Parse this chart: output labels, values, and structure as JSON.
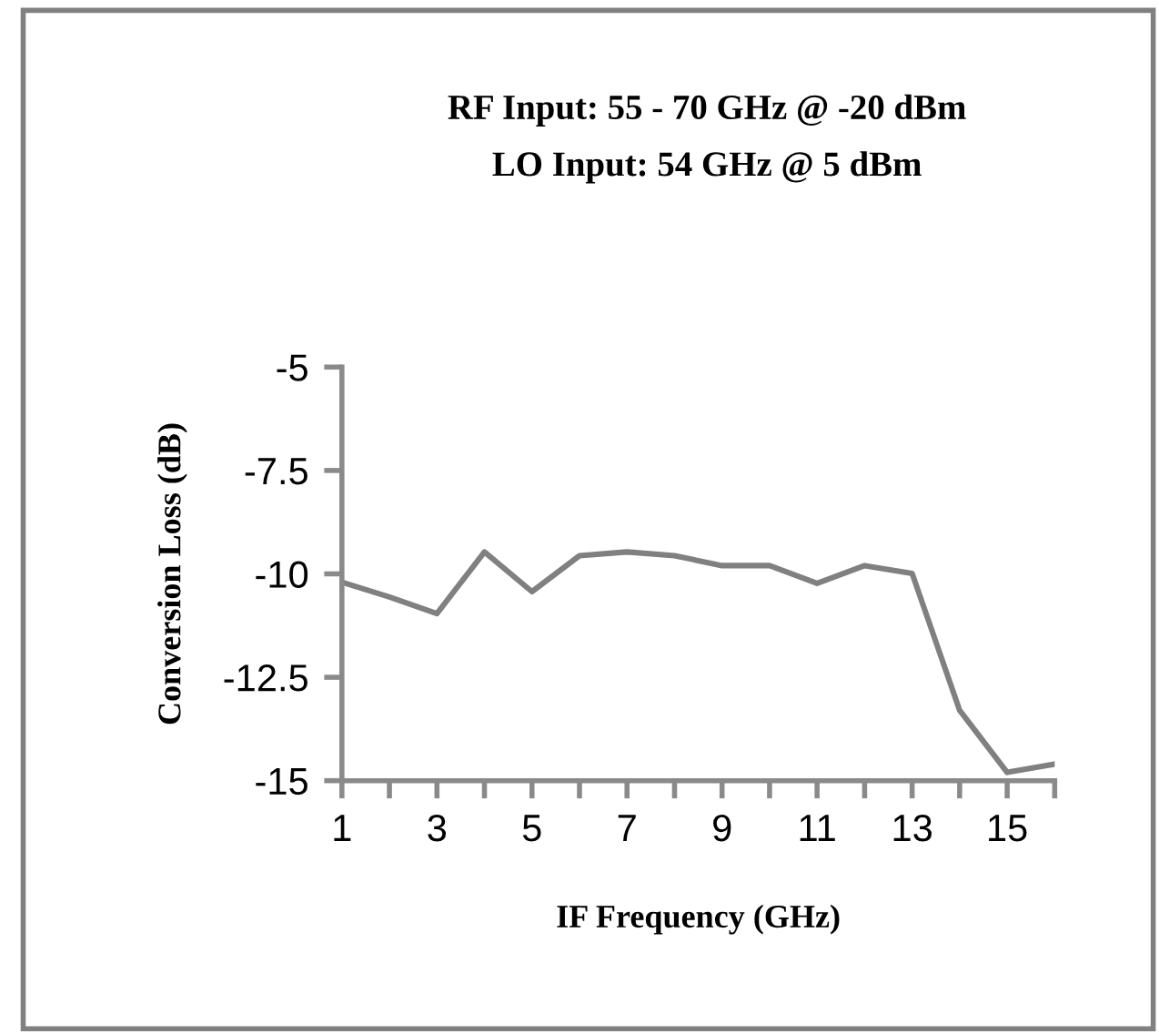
{
  "chart_data": {
    "type": "line",
    "title": "RF Input: 55 - 70 GHz @ -20 dBm",
    "subtitle": "LO Input: 54 GHz @ 5 dBm",
    "xlabel": "IF Frequency (GHz)",
    "ylabel": "Conversion Loss (dB)",
    "x": [
      1,
      2,
      3,
      4,
      5,
      6,
      7,
      8,
      9,
      10,
      11,
      12,
      13,
      14,
      15,
      16
    ],
    "series": [
      {
        "color": "#808080",
        "values": [
          -10.2,
          -10.56,
          -10.96,
          -9.47,
          -10.43,
          -9.56,
          -9.47,
          -9.56,
          -9.8,
          -9.8,
          -10.23,
          -9.8,
          -9.99,
          -13.3,
          -14.8,
          -14.6
        ]
      }
    ],
    "xlim": [
      1,
      16
    ],
    "xticks": [
      1,
      {
        "value": 2,
        "label": null
      },
      3,
      {
        "value": 4,
        "label": null
      },
      5,
      {
        "value": 6,
        "label": null
      },
      7,
      {
        "value": 8,
        "label": null
      },
      9,
      {
        "value": 10,
        "label": null
      },
      11,
      {
        "value": 12,
        "label": null
      },
      13,
      {
        "value": 14,
        "label": null
      },
      15,
      {
        "value": 16,
        "label": null
      }
    ],
    "ylim": [
      -15,
      -5
    ],
    "yticks": [
      {
        "value": -5,
        "label": "-5"
      },
      {
        "value": -7.5,
        "label": "-7.5"
      },
      {
        "value": -10,
        "label": "-10"
      },
      {
        "value": -12.5,
        "label": "-12.5"
      },
      {
        "value": -15,
        "label": "-15"
      }
    ],
    "grid": false,
    "legend": false,
    "marker": "none",
    "line_style": "solid"
  }
}
